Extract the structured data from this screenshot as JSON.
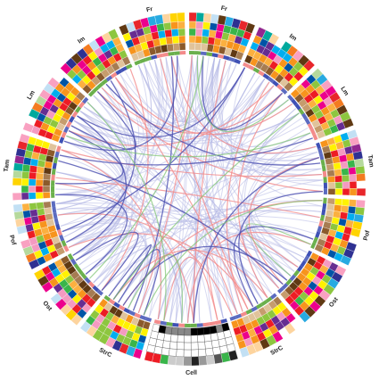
{
  "sectors": [
    {
      "label": "Fr"
    },
    {
      "label": "Im"
    },
    {
      "label": "Lm"
    },
    {
      "label": "Tam"
    },
    {
      "label": "Pof"
    },
    {
      "label": "Ost"
    },
    {
      "label": "StrC"
    },
    {
      "label": "Cell"
    },
    {
      "label": "StrC"
    },
    {
      "label": "Ost"
    },
    {
      "label": "Pof"
    },
    {
      "label": "Tam"
    },
    {
      "label": "Lm"
    },
    {
      "label": "Im"
    },
    {
      "label": "Fr"
    }
  ]
}
